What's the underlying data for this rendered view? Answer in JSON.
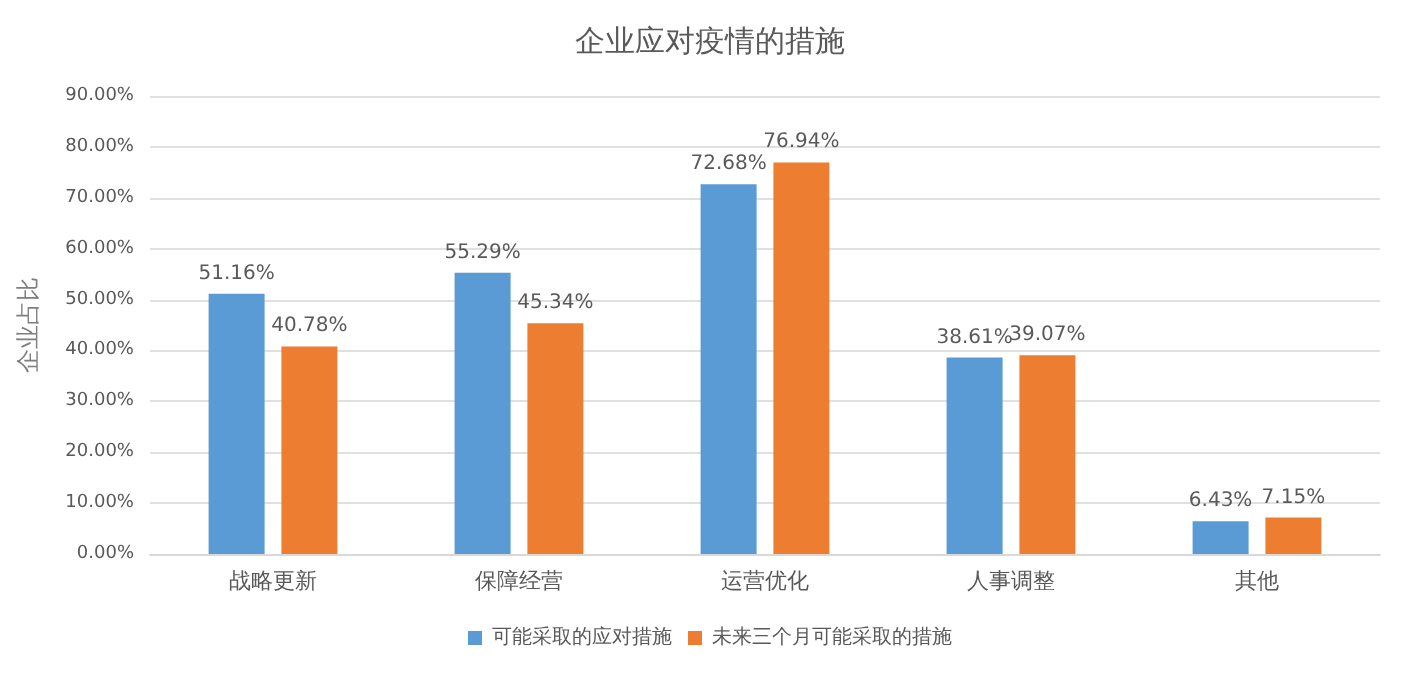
{
  "chart_data": {
    "type": "bar",
    "title": "企业应对疫情的措施",
    "ylabel": "企业占比",
    "categories": [
      "战略更新",
      "保障经营",
      "运营优化",
      "人事调整",
      "其他"
    ],
    "series": [
      {
        "name": "可能采取的应对措施",
        "color": "#5b9bd5",
        "values": [
          51.16,
          55.29,
          72.68,
          38.61,
          6.43
        ],
        "value_labels": [
          "51.16%",
          "55.29%",
          "72.68%",
          "38.61%",
          "6.43%"
        ]
      },
      {
        "name": "未来三个月可能采取的措施",
        "color": "#ed7d31",
        "values": [
          40.78,
          45.34,
          76.94,
          39.07,
          7.15
        ],
        "value_labels": [
          "40.78%",
          "45.34%",
          "76.94%",
          "39.07%",
          "7.15%"
        ]
      }
    ],
    "ylim": [
      0,
      90
    ],
    "yticks": [
      {
        "value": 0,
        "label": "0.00%"
      },
      {
        "value": 10,
        "label": "10.00%"
      },
      {
        "value": 20,
        "label": "20.00%"
      },
      {
        "value": 30,
        "label": "30.00%"
      },
      {
        "value": 40,
        "label": "40.00%"
      },
      {
        "value": 50,
        "label": "50.00%"
      },
      {
        "value": 60,
        "label": "60.00%"
      },
      {
        "value": 70,
        "label": "70.00%"
      },
      {
        "value": 80,
        "label": "80.00%"
      },
      {
        "value": 90,
        "label": "90.00%"
      }
    ],
    "grid": "y",
    "legend": "bottom"
  }
}
